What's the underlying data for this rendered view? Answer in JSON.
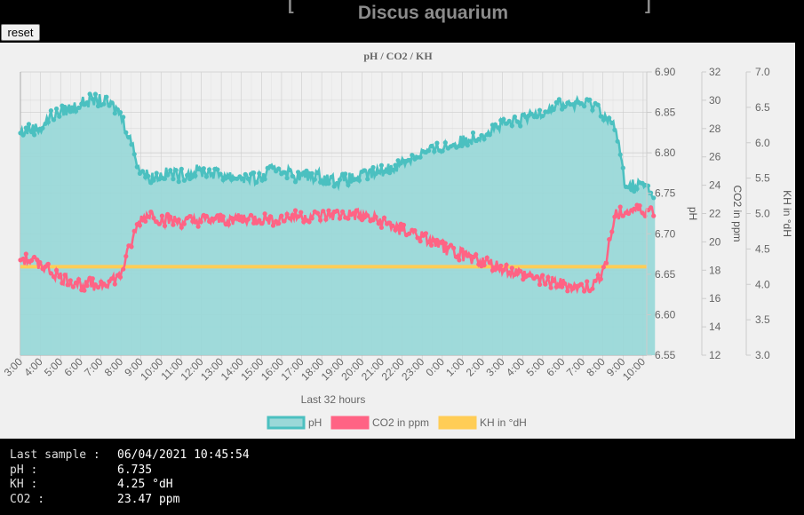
{
  "header": {
    "title": "Discus aquarium",
    "reset_label": "reset"
  },
  "colors": {
    "ph": "#4bc0c0",
    "ph_fill": "#9ad8d8",
    "co2": "#ff6384",
    "kh": "#ffcd56",
    "grid": "#cccccc",
    "text": "#666666",
    "panel": "#f0f0f0"
  },
  "chart_data": {
    "type": "line",
    "title": "pH / CO2 / KH",
    "xlabel": "Last 32 hours",
    "x_ticks": [
      "3:00",
      "4:00",
      "5:00",
      "6:00",
      "7:00",
      "8:00",
      "9:00",
      "10:00",
      "11:00",
      "12:00",
      "13:00",
      "14:00",
      "15:00",
      "16:00",
      "17:00",
      "18:00",
      "19:00",
      "20:00",
      "21:00",
      "22:00",
      "23:00",
      "0:00",
      "1:00",
      "2:00",
      "3:00",
      "4:00",
      "5:00",
      "6:00",
      "7:00",
      "8:00",
      "9:00",
      "10:00"
    ],
    "axes": {
      "ph": {
        "label": "pH",
        "min": 6.55,
        "max": 6.9,
        "ticks": [
          "6.90",
          "6.85",
          "6.80",
          "6.75",
          "6.70",
          "6.65",
          "6.60",
          "6.55"
        ]
      },
      "co2": {
        "label": "CO2 in ppm",
        "min": 12,
        "max": 32,
        "ticks": [
          "32",
          "30",
          "28",
          "26",
          "24",
          "22",
          "20",
          "18",
          "16",
          "14",
          "12"
        ]
      },
      "kh": {
        "label": "KH in °dH",
        "min": 3.0,
        "max": 7.0,
        "ticks": [
          "7.0",
          "6.5",
          "6.0",
          "5.5",
          "5.0",
          "4.5",
          "4.0",
          "3.5",
          "3.0"
        ]
      }
    },
    "series": [
      {
        "name": "pH",
        "axis": "ph",
        "fill": true,
        "hours": [
          0,
          0.5,
          1,
          1.5,
          2,
          2.5,
          3,
          3.5,
          4,
          4.5,
          5,
          5.5,
          6,
          6.5,
          7,
          7.5,
          8,
          9,
          10,
          11,
          12,
          13,
          14,
          15,
          16,
          17,
          18,
          19,
          20,
          21,
          22,
          23,
          24,
          25,
          26,
          27,
          28,
          29,
          30,
          30.5,
          31,
          31.5,
          32
        ],
        "values": [
          6.825,
          6.83,
          6.83,
          6.845,
          6.85,
          6.855,
          6.86,
          6.865,
          6.865,
          6.86,
          6.85,
          6.82,
          6.78,
          6.77,
          6.772,
          6.775,
          6.772,
          6.778,
          6.774,
          6.77,
          6.768,
          6.782,
          6.77,
          6.772,
          6.765,
          6.77,
          6.776,
          6.785,
          6.798,
          6.805,
          6.812,
          6.82,
          6.832,
          6.838,
          6.848,
          6.86,
          6.86,
          6.86,
          6.83,
          6.76,
          6.76,
          6.76,
          6.74
        ]
      },
      {
        "name": "CO2 in ppm",
        "axis": "co2",
        "hours": [
          0,
          1,
          2,
          3,
          4,
          5,
          5.5,
          6,
          6.5,
          7,
          8,
          9,
          10,
          11,
          12,
          13,
          14,
          15,
          16,
          17,
          18,
          19,
          20,
          21,
          22,
          23,
          24,
          25,
          26,
          27,
          28,
          28.5,
          29,
          29.5,
          30,
          31,
          32
        ],
        "values": [
          18.8,
          18.5,
          17.5,
          17.0,
          17.0,
          17.5,
          19.5,
          21.5,
          22.0,
          21.6,
          21.4,
          21.5,
          21.5,
          21.7,
          21.6,
          21.6,
          21.8,
          21.8,
          21.9,
          21.9,
          21.5,
          21.0,
          20.5,
          19.8,
          19.2,
          18.8,
          18.3,
          17.8,
          17.5,
          17.1,
          16.8,
          16.8,
          17.0,
          18.5,
          22.0,
          22.2,
          22.2
        ]
      },
      {
        "name": "KH in °dH",
        "axis": "kh",
        "hours": [
          0,
          32
        ],
        "values": [
          4.25,
          4.25
        ]
      }
    ],
    "legend": [
      "pH",
      "CO2 in ppm",
      "KH in °dH"
    ],
    "legend_position": "bottom"
  },
  "info": {
    "rows": [
      {
        "label": "Last sample :",
        "value": "06/04/2021 10:45:54"
      },
      {
        "label": "pH :",
        "value": "6.735"
      },
      {
        "label": "KH :",
        "value": "4.25 °dH"
      },
      {
        "label": "CO2 :",
        "value": "23.47 ppm"
      }
    ]
  }
}
